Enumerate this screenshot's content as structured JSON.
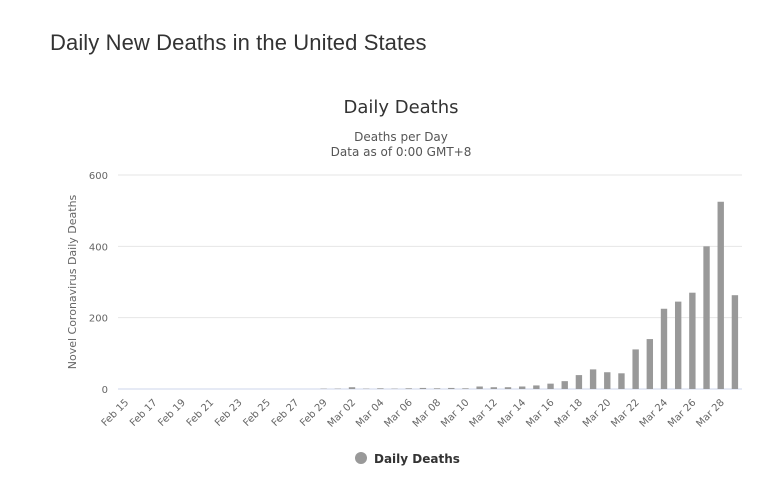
{
  "page": {
    "heading": "Daily New Deaths in the United States"
  },
  "chart_data": {
    "type": "bar",
    "title": "Daily Deaths",
    "subtitle_lines": [
      "Deaths per Day",
      "Data as of 0:00 GMT+8"
    ],
    "xlabel": "",
    "ylabel": "Novel Coronavirus Daily Deaths",
    "ylim": [
      0,
      600
    ],
    "yticks": [
      0,
      200,
      400,
      600
    ],
    "grid": true,
    "legend_position": "bottom-center",
    "bar_color": "#999999",
    "categories": [
      "Feb 15",
      "Feb 16",
      "Feb 17",
      "Feb 18",
      "Feb 19",
      "Feb 20",
      "Feb 21",
      "Feb 22",
      "Feb 23",
      "Feb 24",
      "Feb 25",
      "Feb 26",
      "Feb 27",
      "Feb 28",
      "Feb 29",
      "Mar 01",
      "Mar 02",
      "Mar 03",
      "Mar 04",
      "Mar 05",
      "Mar 06",
      "Mar 07",
      "Mar 08",
      "Mar 09",
      "Mar 10",
      "Mar 11",
      "Mar 12",
      "Mar 13",
      "Mar 14",
      "Mar 15",
      "Mar 16",
      "Mar 17",
      "Mar 18",
      "Mar 19",
      "Mar 20",
      "Mar 21",
      "Mar 22",
      "Mar 23",
      "Mar 24",
      "Mar 25",
      "Mar 26",
      "Mar 27",
      "Mar 28",
      "Mar 29"
    ],
    "tick_labels": [
      "Feb 15",
      "Feb 17",
      "Feb 19",
      "Feb 21",
      "Feb 23",
      "Feb 25",
      "Feb 27",
      "Feb 29",
      "Mar 02",
      "Mar 04",
      "Mar 06",
      "Mar 08",
      "Mar 10",
      "Mar 12",
      "Mar 14",
      "Mar 16",
      "Mar 18",
      "Mar 20",
      "Mar 22",
      "Mar 24",
      "Mar 26",
      "Mar 28"
    ],
    "series": [
      {
        "name": "Daily Deaths",
        "values": [
          0,
          0,
          0,
          0,
          0,
          0,
          0,
          0,
          0,
          0,
          0,
          0,
          0,
          0,
          1,
          1,
          5,
          1,
          2,
          1,
          2,
          3,
          2,
          3,
          2,
          7,
          5,
          5,
          7,
          10,
          15,
          22,
          39,
          55,
          47,
          44,
          111,
          140,
          225,
          245,
          270,
          400,
          525,
          263
        ]
      }
    ]
  }
}
